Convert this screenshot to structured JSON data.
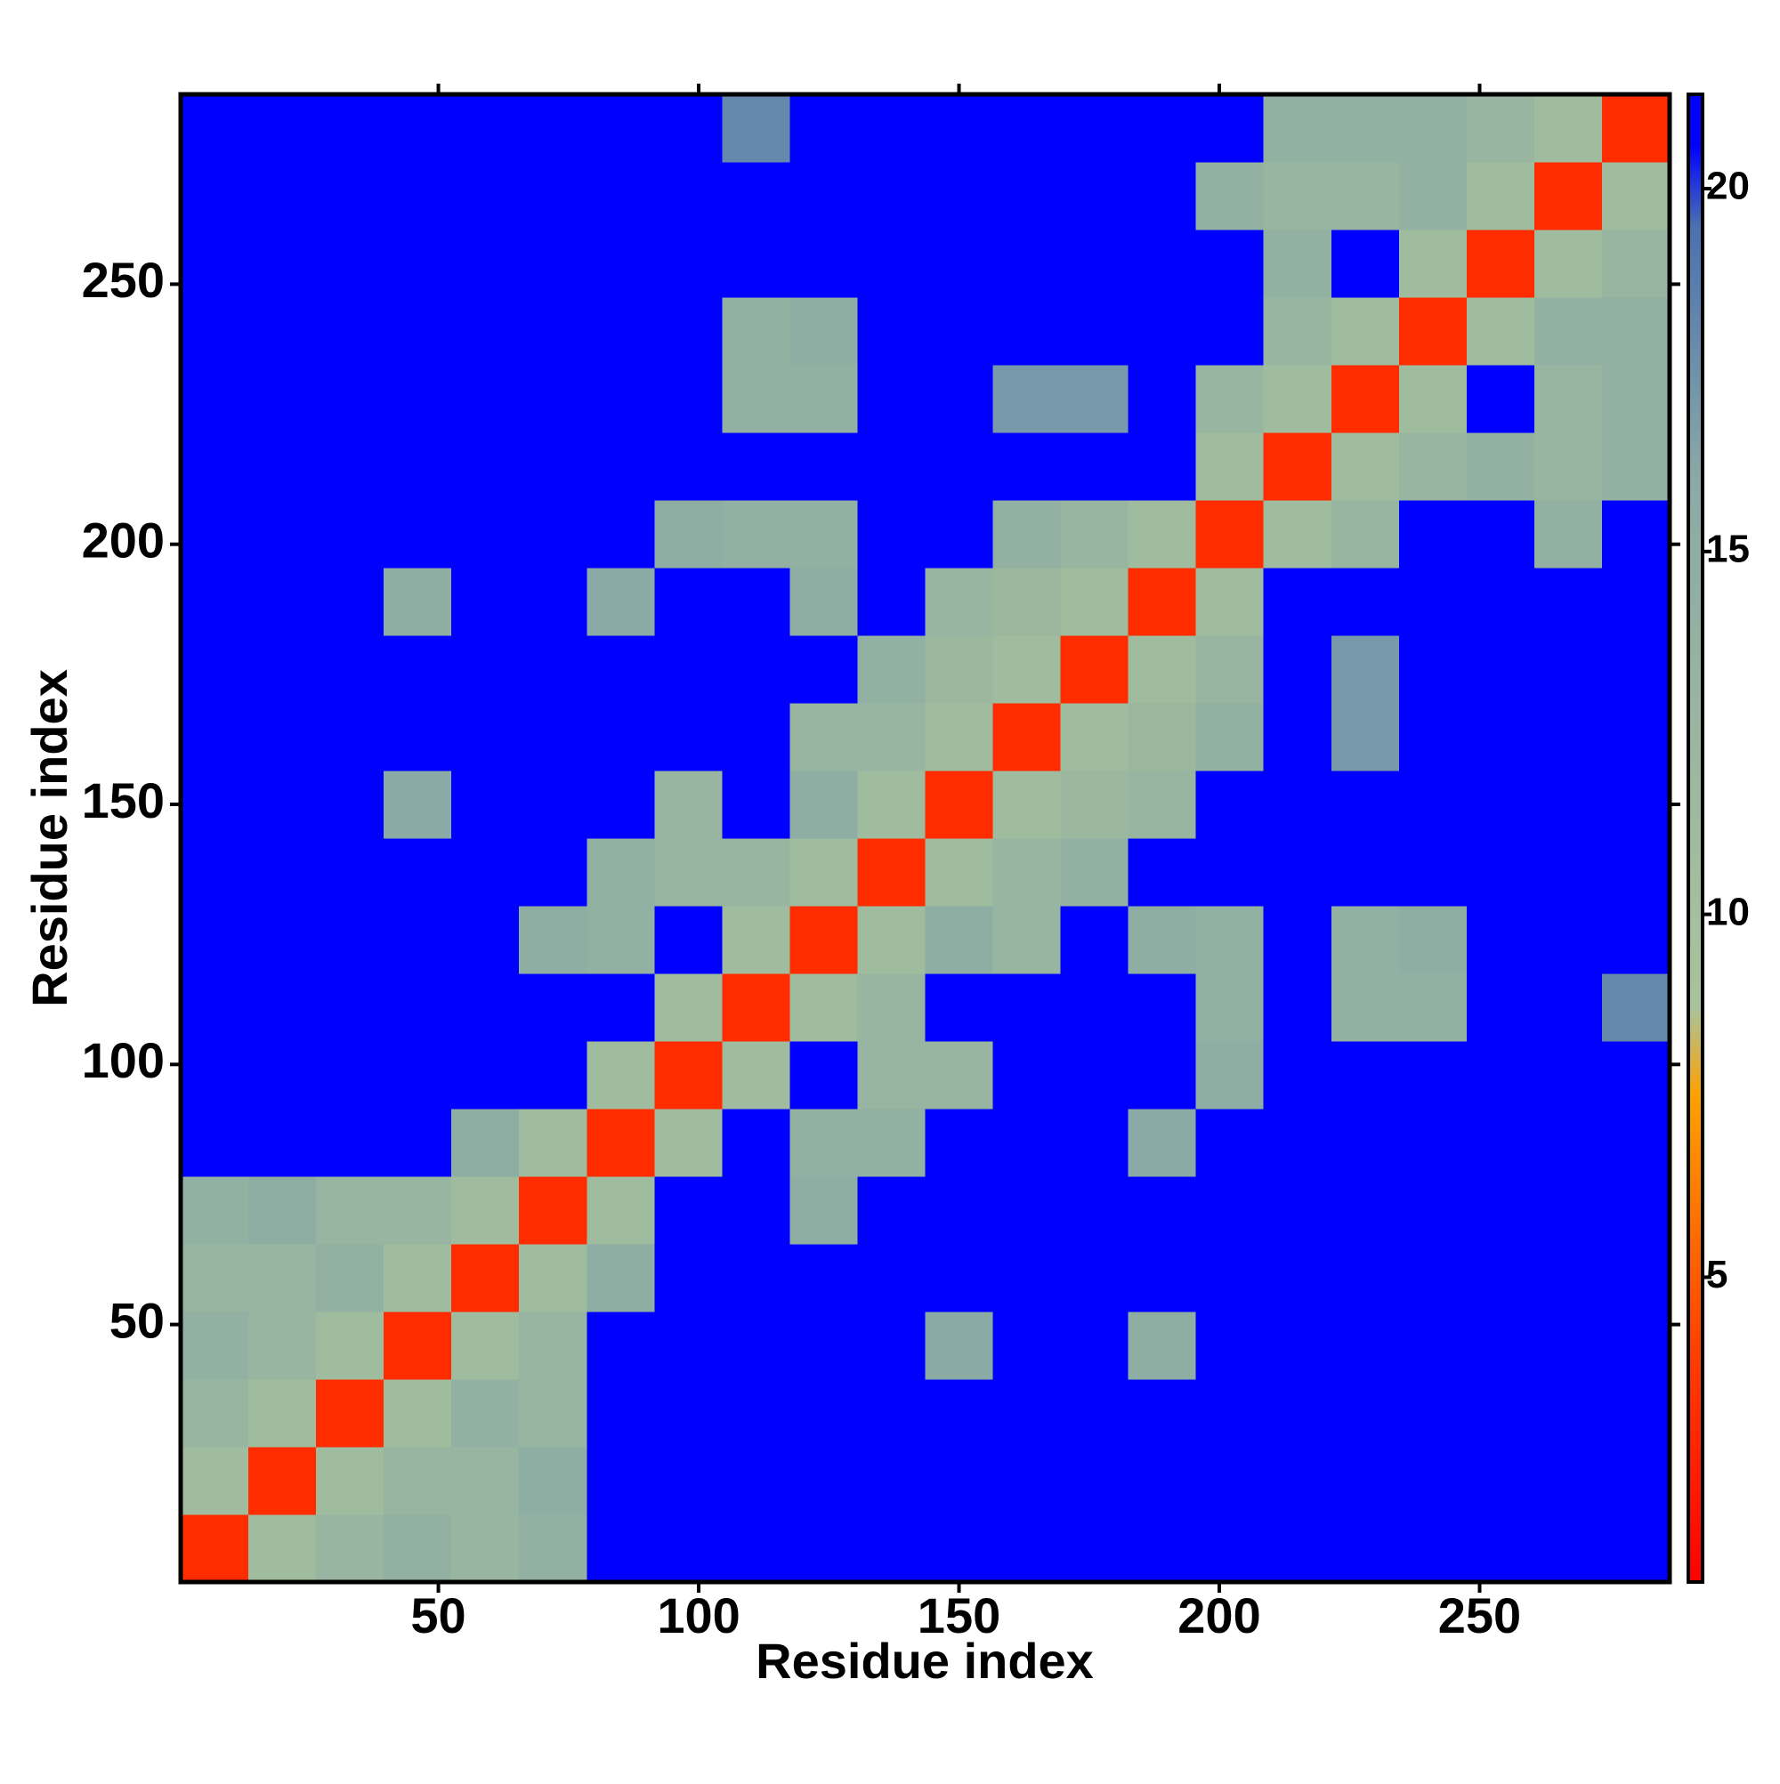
{
  "chart_data": {
    "type": "heatmap",
    "xlabel": "Residue index",
    "ylabel": "Residue index",
    "xlim": [
      0.5,
      286.5
    ],
    "ylim": [
      0.5,
      286.5
    ],
    "xticks": [
      50,
      100,
      150,
      200,
      250
    ],
    "yticks": [
      50,
      100,
      150,
      200,
      250
    ],
    "xbins": [
      0.5,
      13.5,
      26.5,
      39.5,
      52.5,
      65.5,
      78.5,
      91.5,
      104.5,
      117.5,
      130.5,
      143.5,
      156.5,
      169.5,
      182.5,
      195.5,
      208.5,
      221.5,
      234.5,
      247.5,
      260.5,
      273.5,
      286.5
    ],
    "ybins": [
      0.5,
      13.5,
      26.5,
      39.5,
      52.5,
      65.5,
      78.5,
      91.5,
      104.5,
      117.5,
      130.5,
      143.5,
      156.5,
      169.5,
      182.5,
      195.5,
      208.5,
      221.5,
      234.5,
      247.5,
      260.5,
      273.5,
      286.5
    ],
    "z": [
      [
        3,
        11,
        13,
        14,
        13,
        14,
        21,
        21,
        21,
        21,
        21,
        21,
        21,
        21,
        21,
        21,
        21,
        21,
        21,
        21,
        21,
        21
      ],
      [
        11,
        3,
        11,
        13,
        13,
        15,
        21,
        21,
        21,
        21,
        21,
        21,
        21,
        21,
        21,
        21,
        21,
        21,
        21,
        21,
        21,
        21
      ],
      [
        13,
        11,
        3,
        11,
        14,
        13,
        21,
        21,
        21,
        21,
        21,
        21,
        21,
        21,
        21,
        21,
        21,
        21,
        21,
        21,
        21,
        21
      ],
      [
        14,
        13,
        11,
        3,
        11,
        13,
        21,
        21,
        21,
        21,
        21,
        16,
        21,
        21,
        15,
        21,
        21,
        21,
        21,
        21,
        21,
        21
      ],
      [
        13,
        13,
        14,
        11,
        3,
        11,
        15,
        21,
        21,
        21,
        21,
        21,
        21,
        21,
        21,
        21,
        21,
        21,
        21,
        21,
        21,
        21
      ],
      [
        14,
        15,
        13,
        13,
        11,
        3,
        11,
        21,
        21,
        15,
        21,
        21,
        21,
        21,
        21,
        21,
        21,
        21,
        21,
        21,
        21,
        21
      ],
      [
        21,
        21,
        21,
        21,
        15,
        11,
        3,
        11,
        21,
        14,
        14,
        21,
        21,
        21,
        16,
        21,
        21,
        21,
        21,
        21,
        21,
        21
      ],
      [
        21,
        21,
        21,
        21,
        21,
        21,
        11,
        3,
        11,
        21,
        13,
        13,
        21,
        21,
        21,
        15,
        21,
        21,
        21,
        21,
        21,
        21
      ],
      [
        21,
        21,
        21,
        21,
        21,
        21,
        21,
        11,
        3,
        11,
        13,
        21,
        21,
        21,
        21,
        14,
        21,
        14,
        14,
        21,
        21,
        18
      ],
      [
        21,
        21,
        21,
        21,
        21,
        15,
        14,
        21,
        11,
        3,
        11,
        15,
        13,
        21,
        15,
        14,
        21,
        14,
        15,
        21,
        21,
        21
      ],
      [
        21,
        21,
        21,
        21,
        21,
        21,
        14,
        13,
        13,
        11,
        3,
        11,
        13,
        14,
        21,
        21,
        21,
        21,
        21,
        21,
        21,
        21
      ],
      [
        21,
        21,
        21,
        16,
        21,
        21,
        21,
        13,
        21,
        15,
        11,
        3,
        11,
        12,
        13,
        21,
        21,
        21,
        21,
        21,
        21,
        21
      ],
      [
        21,
        21,
        21,
        21,
        21,
        21,
        21,
        21,
        21,
        13,
        13,
        11,
        3,
        11,
        12,
        14,
        21,
        17,
        21,
        21,
        21,
        21
      ],
      [
        21,
        21,
        21,
        21,
        21,
        21,
        21,
        21,
        21,
        21,
        14,
        12,
        11,
        3,
        11,
        13,
        21,
        17,
        21,
        21,
        21,
        21
      ],
      [
        21,
        21,
        21,
        15,
        21,
        21,
        16,
        21,
        21,
        15,
        21,
        13,
        12,
        11,
        3,
        11,
        21,
        21,
        21,
        21,
        21,
        21
      ],
      [
        21,
        21,
        21,
        21,
        21,
        21,
        21,
        15,
        14,
        14,
        21,
        21,
        14,
        13,
        11,
        3,
        11,
        13,
        21,
        21,
        14,
        21
      ],
      [
        21,
        21,
        21,
        21,
        21,
        21,
        21,
        21,
        21,
        21,
        21,
        21,
        21,
        21,
        21,
        11,
        3,
        11,
        13,
        14,
        13,
        14
      ],
      [
        21,
        21,
        21,
        21,
        21,
        21,
        21,
        21,
        14,
        14,
        21,
        21,
        17,
        17,
        21,
        13,
        11,
        3,
        11,
        21,
        13,
        14
      ],
      [
        21,
        21,
        21,
        21,
        21,
        21,
        21,
        21,
        14,
        15,
        21,
        21,
        21,
        21,
        21,
        21,
        13,
        11,
        3,
        11,
        14,
        14
      ],
      [
        21,
        21,
        21,
        21,
        21,
        21,
        21,
        21,
        21,
        21,
        21,
        21,
        21,
        21,
        21,
        21,
        14,
        21,
        11,
        3,
        11,
        13
      ],
      [
        21,
        21,
        21,
        21,
        21,
        21,
        21,
        21,
        21,
        21,
        21,
        21,
        21,
        21,
        21,
        14,
        13,
        13,
        14,
        11,
        3,
        11
      ],
      [
        21,
        21,
        21,
        21,
        21,
        21,
        21,
        21,
        18,
        21,
        21,
        21,
        21,
        21,
        21,
        21,
        14,
        14,
        14,
        13,
        11,
        3
      ]
    ],
    "zlim": [
      0.8,
      21.3
    ],
    "cticks": [
      5,
      10,
      15,
      20
    ],
    "colorscale": [
      [
        0.8,
        "#ff0000"
      ],
      [
        4,
        "#ff4000"
      ],
      [
        7.5,
        "#ffa000"
      ],
      [
        8.7,
        "#a9c49a"
      ],
      [
        16,
        "#8aaaa6"
      ],
      [
        19.5,
        "#4a70b0"
      ],
      [
        20.6,
        "#0000ff"
      ],
      [
        21.3,
        "#0000ff"
      ]
    ]
  }
}
